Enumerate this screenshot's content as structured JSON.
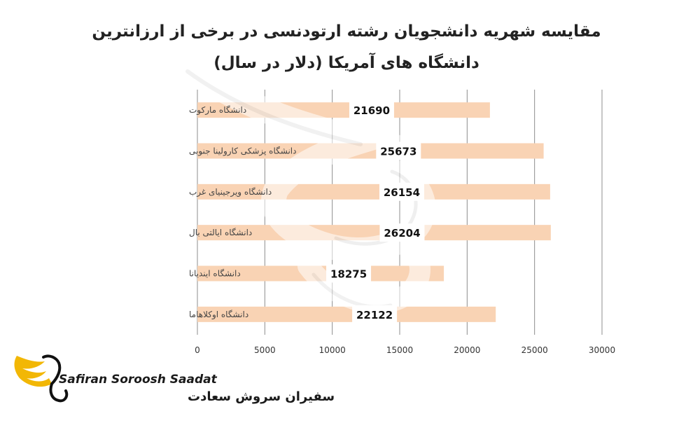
{
  "chart_data": {
    "type": "bar",
    "orientation": "horizontal",
    "title_line1": "مقایسه شهریه دانشجویان رشته ارتودنسی در برخی از ارزانترین",
    "title_line2": "دانشگاه های آمریکا (دلار در سال)",
    "categories": [
      "دانشگاه مارکوت",
      "دانشگاه پزشکی کارولینا جنوبی",
      "دانشگاه ویرجینیای غرب",
      "دانشگاه ایالتی بال",
      "دانشگاه ایندیانا",
      "دانشگاه اوکلاهاما"
    ],
    "values": [
      21690,
      25673,
      26154,
      26204,
      18275,
      22122
    ],
    "xlim": [
      0,
      30000
    ],
    "xticks": [
      0,
      5000,
      10000,
      15000,
      20000,
      25000,
      30000
    ],
    "grid": "vertical",
    "bar_color": "#f9d3b4",
    "gridline_color": "#8c8c8c"
  },
  "logo": {
    "name_en": "Safiran Soroosh Saadat",
    "name_fa": "سفیران سروش سعادت",
    "icon": "wing-swan-icon",
    "accent_color": "#f2b705"
  },
  "watermark": {
    "icon": "wing-swan-watermark"
  }
}
